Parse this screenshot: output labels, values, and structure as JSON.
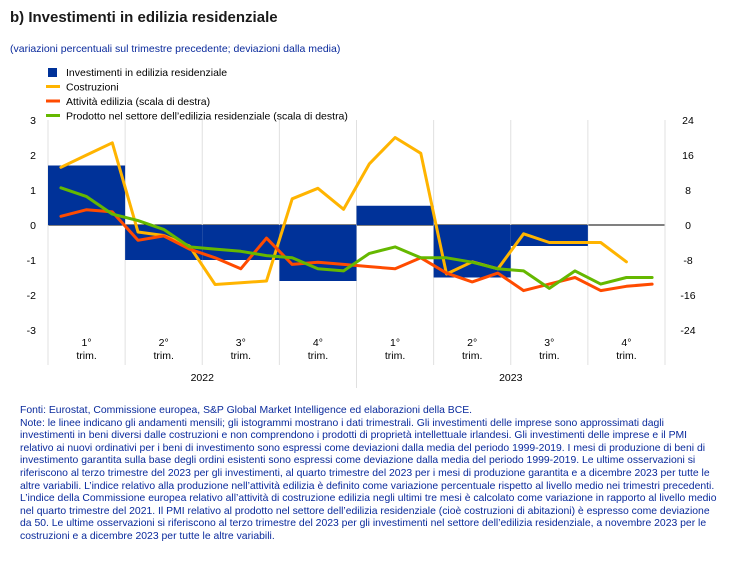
{
  "title": "b) Investimenti in edilizia residenziale",
  "subtitle": "(variazioni percentuali sul trimestre precedente; deviazioni dalla media)",
  "colors": {
    "bar": "#003299",
    "costruzioni": "#ffb400",
    "attivita": "#ff4b00",
    "prodotto": "#65b800",
    "text": "#0a2a9c"
  },
  "chart_data": {
    "type": "bar+line",
    "legend_position": "top-left",
    "grid": "vertical separators between quarters",
    "legend": [
      "Investimenti in edilizia residenziale",
      "Costruzioni",
      "Attività edilizia (scala di destra)",
      "Prodotto nel settore dell’edilizia residenziale (scala di destra)"
    ],
    "left_axis": {
      "ylim": [
        -3,
        3
      ],
      "ticks": [
        "3",
        "2",
        "1",
        "0",
        "-1",
        "-2",
        "-3"
      ]
    },
    "right_axis": {
      "ylim": [
        -24,
        24
      ],
      "ticks": [
        "24",
        "16",
        "8",
        "0",
        "-8",
        "-16",
        "-24"
      ]
    },
    "quarters": [
      [
        "1°",
        "trim."
      ],
      [
        "2°",
        "trim."
      ],
      [
        "3°",
        "trim."
      ],
      [
        "4°",
        "trim."
      ],
      [
        "1°",
        "trim."
      ],
      [
        "2°",
        "trim."
      ],
      [
        "3°",
        "trim."
      ],
      [
        "4°",
        "trim."
      ]
    ],
    "years": [
      "2022",
      "2023"
    ],
    "bars": {
      "name": "Investimenti in edilizia residenziale",
      "values": [
        1.7,
        -1.0,
        -1.0,
        -1.6,
        0.55,
        -1.5,
        -0.6,
        null
      ]
    },
    "series": [
      {
        "name": "Costruzioni",
        "axis": "left",
        "values": [
          1.65,
          2.0,
          2.35,
          -0.2,
          -0.3,
          -0.6,
          -1.7,
          -1.65,
          -1.6,
          0.75,
          1.05,
          0.45,
          1.75,
          2.5,
          2.05,
          -1.4,
          -1.05,
          -1.25,
          -0.25,
          -0.5,
          -0.5,
          -0.5,
          -1.05
        ]
      },
      {
        "name": "Attività edilizia (scala di destra)",
        "axis": "right",
        "values": [
          2.0,
          3.5,
          3.0,
          -3.5,
          -2.5,
          -5.5,
          -7.5,
          -10.0,
          -3.0,
          -9.0,
          -8.5,
          -9.0,
          -9.5,
          -10.0,
          -7.5,
          -11.0,
          -13.0,
          -11.0,
          -15.0,
          -13.5,
          -12.0,
          -15.0,
          -14.0,
          -13.5
        ]
      },
      {
        "name": "Prodotto nel settore dell’edilizia residenziale (scala di destra)",
        "axis": "right",
        "values": [
          8.5,
          6.5,
          2.5,
          1.0,
          -1.0,
          -5.0,
          -5.5,
          -6.0,
          -7.0,
          -7.5,
          -10.0,
          -10.5,
          -6.5,
          -5.0,
          -7.5,
          -7.5,
          -8.5,
          -10.0,
          -10.5,
          -14.5,
          -10.5,
          -13.5,
          -12.0,
          -12.0
        ]
      }
    ]
  },
  "notes": [
    "Fonti: Eurostat, Commissione europea, S&P Global Market Intelligence ed elaborazioni della BCE.",
    "Note: le linee indicano gli andamenti mensili; gli istogrammi mostrano i dati trimestrali. Gli investimenti delle imprese sono approssimati dagli investimenti in beni diversi dalle costruzioni e non comprendono i prodotti di proprietà intellettuale irlandesi. Gli investimenti delle imprese e il PMI relativo ai nuovi ordinativi per i beni di investimento sono espressi come deviazioni dalla media del periodo 1999-2019. I mesi di produzione di beni di investimento garantita sulla base degli ordini esistenti sono espressi come deviazione dalla media del periodo 1999-2019. Le ultime osservazioni si riferiscono al terzo trimestre del 2023 per gli investimenti, al quarto trimestre del 2023 per i mesi di produzione garantita e a dicembre 2023 per tutte le altre variabili. L’indice relativo alla produzione nell’attività edilizia è definito come variazione percentuale rispetto al livello medio nei trimestri precedenti. L’indice della Commissione europea relativo all’attività di costruzione edilizia negli ultimi tre mesi è calcolato come variazione in rapporto al livello medio nel quarto trimestre del 2021. Il PMI relativo al prodotto nel settore dell’edilizia residenziale (cioè costruzioni di abitazioni) è espresso come deviazione da 50. Le ultime osservazioni si riferiscono al terzo trimestre del 2023 per gli investimenti nel settore dell’edilizia residenziale, a novembre 2023 per le costruzioni e a dicembre 2023 per tutte le altre variabili."
  ]
}
